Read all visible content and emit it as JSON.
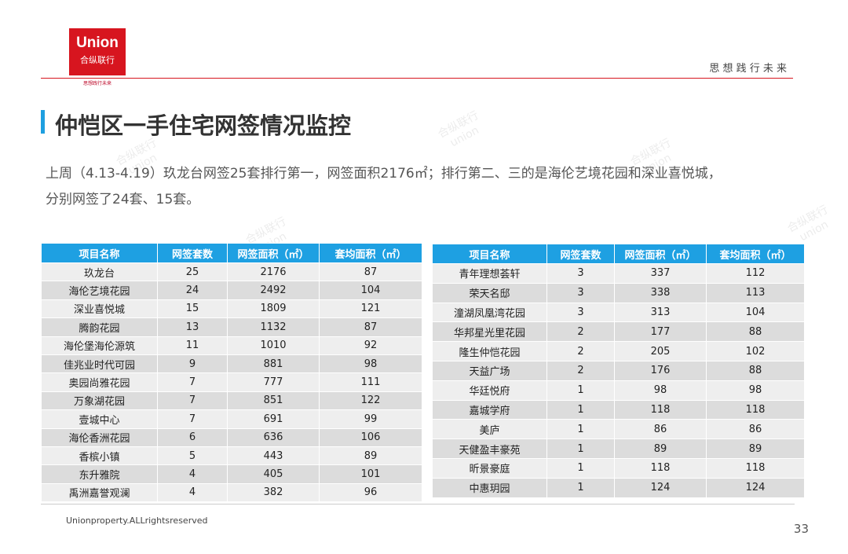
{
  "header": {
    "logo_en": "Union",
    "logo_cn": "合纵联行",
    "logo_tagline": "思想践行未来",
    "slogan": "思 想 践 行 未 来"
  },
  "title": "仲恺区一手住宅网签情况监控",
  "summary": [
    "上周（4.13-4.19）玖龙台网签25套排行第一，网签面积2176㎡；排行第二、三的是海伦艺境花园和深业喜悦城，",
    "分别网签了24套、15套。"
  ],
  "tables": [
    {
      "columns": [
        "项目名称",
        "网签套数",
        "网签面积（㎡）",
        "套均面积（㎡）"
      ],
      "rows": [
        [
          "玖龙台",
          25,
          2176,
          87
        ],
        [
          "海伦艺境花园",
          24,
          2492,
          104
        ],
        [
          "深业喜悦城",
          15,
          1809,
          121
        ],
        [
          "腾韵花园",
          13,
          1132,
          87
        ],
        [
          "海伦堡海伦源筑",
          11,
          1010,
          92
        ],
        [
          "佳兆业时代可园",
          9,
          881,
          98
        ],
        [
          "奥园尚雅花园",
          7,
          777,
          111
        ],
        [
          "万象湖花园",
          7,
          851,
          122
        ],
        [
          "壹城中心",
          7,
          691,
          99
        ],
        [
          "海伦香洲花园",
          6,
          636,
          106
        ],
        [
          "香槟小镇",
          5,
          443,
          89
        ],
        [
          "东升雅院",
          4,
          405,
          101
        ],
        [
          "禹洲嘉誉观澜",
          4,
          382,
          96
        ]
      ]
    },
    {
      "columns": [
        "项目名称",
        "网签套数",
        "网签面积（㎡）",
        "套均面积（㎡）"
      ],
      "rows": [
        [
          "青年理想荟轩",
          3,
          337,
          112
        ],
        [
          "荣天名邸",
          3,
          338,
          113
        ],
        [
          "潼湖凤凰湾花园",
          3,
          313,
          104
        ],
        [
          "华邦星光里花园",
          2,
          177,
          88
        ],
        [
          "隆生仲恺花园",
          2,
          205,
          102
        ],
        [
          "天益广场",
          2,
          176,
          88
        ],
        [
          "华廷悦府",
          1,
          98,
          98
        ],
        [
          "嘉城学府",
          1,
          118,
          118
        ],
        [
          "美庐",
          1,
          86,
          86
        ],
        [
          "天健盈丰豪苑",
          1,
          89,
          89
        ],
        [
          "昕景豪庭",
          1,
          118,
          118
        ],
        [
          "中惠玥园",
          1,
          124,
          124
        ]
      ]
    }
  ],
  "footer": {
    "copyright": "Unionproperty.ALLrightsreserved",
    "page": 33
  },
  "watermark": {
    "cn": "合纵联行",
    "en": "union"
  }
}
